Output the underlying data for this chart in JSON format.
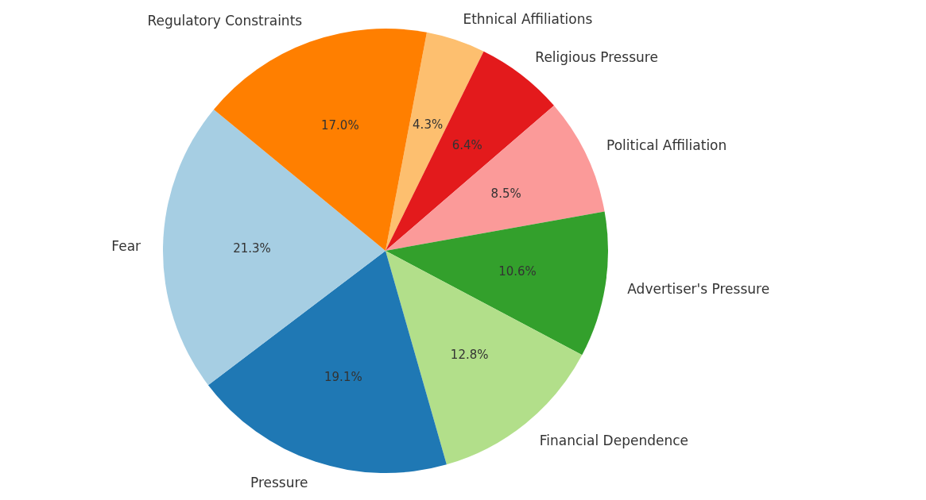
{
  "chart_data": {
    "type": "pie",
    "categories": [
      "Ethnical Affiliations",
      "Religious Pressure",
      "Political Affiliation",
      "Advertiser's Pressure",
      "Financial Dependence",
      "Pressure",
      "Fear",
      "Regulatory Constraints"
    ],
    "values": [
      4.3,
      6.4,
      8.5,
      10.6,
      12.8,
      19.1,
      21.3,
      17.0
    ],
    "colors": [
      "#fdbf6f",
      "#e31a1c",
      "#fb9a99",
      "#33a02c",
      "#b2df8a",
      "#1f78b4",
      "#a6cee3",
      "#ff7f00"
    ],
    "value_labels": [
      "4.3%",
      "6.4%",
      "8.5%",
      "10.6%",
      "12.8%",
      "19.1%",
      "21.3%",
      "17.0%"
    ]
  }
}
